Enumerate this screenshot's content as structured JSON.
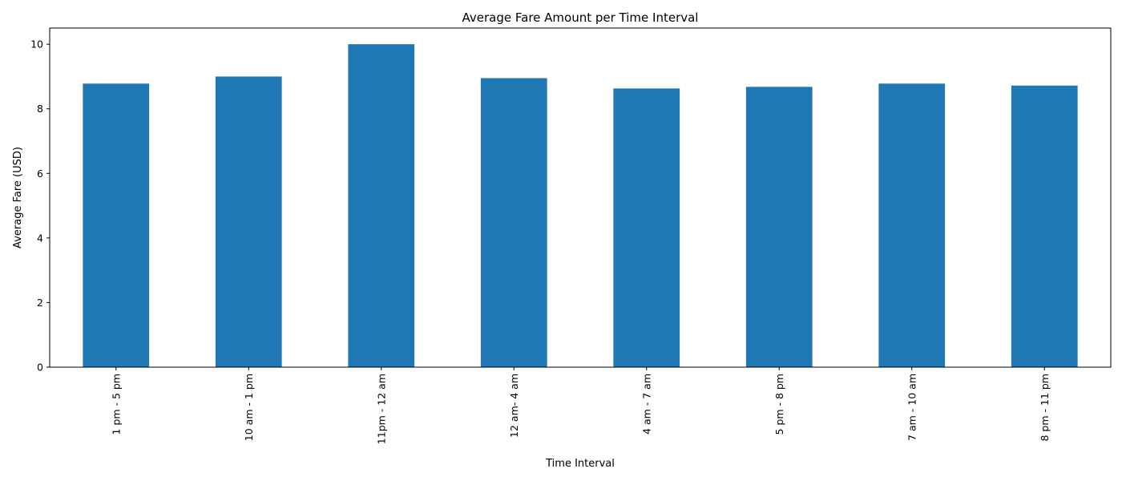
{
  "chart_data": {
    "type": "bar",
    "title": "Average Fare Amount per Time Interval",
    "xlabel": "Time Interval",
    "ylabel": "Average Fare (USD)",
    "categories": [
      "1 pm - 5 pm",
      "10 am - 1 pm",
      "11pm - 12 am",
      "12 am- 4 am",
      "4 am - 7 am",
      "5 pm - 8 pm",
      "7 am - 10 am",
      "8 pm - 11 pm"
    ],
    "values": [
      8.78,
      9.0,
      10.0,
      8.95,
      8.63,
      8.68,
      8.78,
      8.72
    ],
    "ylim": [
      0,
      10.5
    ],
    "yticks": [
      0,
      2,
      4,
      6,
      8,
      10
    ],
    "grid": false,
    "legend": "none",
    "bar_color": "#1f77b4"
  }
}
